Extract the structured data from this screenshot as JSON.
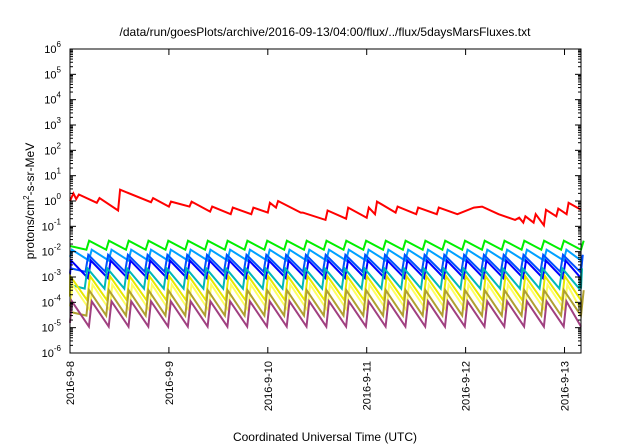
{
  "chart_data": {
    "type": "line",
    "title": "/data/run/goesPlots/archive/2016-09-13/04:00/flux/../flux/5daysMarsFluxes.txt",
    "xlabel": "Coordinated Universal Time (UTC)",
    "ylabel": "protons/cm^2-s-sr-MeV",
    "ylabel_base": "protons/cm",
    "ylabel_sup": "2",
    "ylabel_rest": "-s-sr-MeV",
    "yscale": "log",
    "ylim": [
      1e-06,
      1000000.0
    ],
    "yticks": [
      -6,
      -5,
      -4,
      -3,
      -2,
      -1,
      0,
      1,
      2,
      3,
      4,
      5,
      6
    ],
    "xlim": [
      "2016-09-08T00:00",
      "2016-09-13T04:00"
    ],
    "xticks": [
      "2016-9-8",
      "2016-9-9",
      "2016-9-10",
      "2016-9-11",
      "2016-9-12",
      "2016-9-13"
    ],
    "grid": false,
    "sawtooth_period_hours": 4.8,
    "series": [
      {
        "color": "#ff0000",
        "shape": "jagged",
        "points": [
          [
            "2016-09-08T00:00",
            1.0
          ],
          [
            "2016-09-08T00:50",
            2.0
          ],
          [
            "2016-09-08T01:30",
            1.2
          ],
          [
            "2016-09-08T02:10",
            1.8
          ],
          [
            "2016-09-08T06:30",
            0.85
          ],
          [
            "2016-09-08T07:10",
            1.3
          ],
          [
            "2016-09-08T11:40",
            0.42
          ],
          [
            "2016-09-08T12:10",
            2.8
          ],
          [
            "2016-09-08T19:40",
            0.9
          ],
          [
            "2016-09-08T20:10",
            1.3
          ],
          [
            "2016-09-09T00:00",
            0.6
          ],
          [
            "2016-09-09T00:30",
            0.95
          ],
          [
            "2016-09-09T05:00",
            0.6
          ],
          [
            "2016-09-09T05:30",
            0.95
          ],
          [
            "2016-09-09T10:00",
            0.38
          ],
          [
            "2016-09-09T10:30",
            0.6
          ],
          [
            "2016-09-09T15:00",
            0.3
          ],
          [
            "2016-09-09T15:30",
            0.55
          ],
          [
            "2016-09-09T20:00",
            0.3
          ],
          [
            "2016-09-09T20:30",
            0.55
          ],
          [
            "2016-09-10T00:00",
            0.35
          ],
          [
            "2016-09-10T00:30",
            0.85
          ],
          [
            "2016-09-10T02:00",
            0.55
          ],
          [
            "2016-09-10T02:30",
            1.0
          ],
          [
            "2016-09-10T08:00",
            0.35
          ],
          [
            "2016-09-10T08:30",
            0.35
          ],
          [
            "2016-09-10T14:00",
            0.18
          ],
          [
            "2016-09-10T14:30",
            0.42
          ],
          [
            "2016-09-10T19:00",
            0.2
          ],
          [
            "2016-09-10T19:30",
            0.55
          ],
          [
            "2016-09-11T00:00",
            0.22
          ],
          [
            "2016-09-11T00:30",
            0.55
          ],
          [
            "2016-09-11T02:00",
            0.3
          ],
          [
            "2016-09-11T02:30",
            0.95
          ],
          [
            "2016-09-11T07:00",
            0.35
          ],
          [
            "2016-09-11T07:30",
            0.6
          ],
          [
            "2016-09-11T12:00",
            0.3
          ],
          [
            "2016-09-11T12:30",
            0.55
          ],
          [
            "2016-09-11T17:00",
            0.3
          ],
          [
            "2016-09-11T17:30",
            0.55
          ],
          [
            "2016-09-11T22:00",
            0.3
          ],
          [
            "2016-09-12T02:00",
            0.55
          ],
          [
            "2016-09-12T04:00",
            0.6
          ],
          [
            "2016-09-12T08:00",
            0.3
          ],
          [
            "2016-09-12T12:00",
            0.18
          ],
          [
            "2016-09-12T13:00",
            0.22
          ],
          [
            "2016-09-12T14:00",
            0.14
          ],
          [
            "2016-09-12T14:30",
            0.25
          ],
          [
            "2016-09-12T16:30",
            0.14
          ],
          [
            "2016-09-12T17:00",
            0.3
          ],
          [
            "2016-09-12T19:00",
            0.11
          ],
          [
            "2016-09-12T19:30",
            0.45
          ],
          [
            "2016-09-12T22:00",
            0.25
          ],
          [
            "2016-09-12T22:30",
            0.5
          ],
          [
            "2016-09-13T00:30",
            0.3
          ],
          [
            "2016-09-13T01:00",
            0.85
          ],
          [
            "2016-09-13T04:00",
            0.45
          ]
        ]
      },
      {
        "color": "#00ee00",
        "shape": "sawtooth",
        "peak": 0.027,
        "trough": 0.012
      },
      {
        "color": "#00a0ff",
        "shape": "sawtooth",
        "peak": 0.012,
        "trough": 0.0045
      },
      {
        "color": "#0050ff",
        "shape": "sawtooth",
        "peak": 0.0075,
        "trough": 0.0016
      },
      {
        "color": "#0000ff",
        "shape": "sawtooth",
        "peak": 0.0045,
        "trough": 0.0009
      },
      {
        "color": "#00b8b8",
        "shape": "sawtooth",
        "peak": 0.0022,
        "trough": 0.00035
      },
      {
        "color": "#e8e800",
        "shape": "sawtooth",
        "peak": 0.0011,
        "trough": 0.00012
      },
      {
        "color": "#ffff60",
        "shape": "sawtooth",
        "peak": 0.0005,
        "trough": 5e-05
      },
      {
        "color": "#b0a030",
        "shape": "sawtooth",
        "peak": 0.0003,
        "trough": 3e-05
      },
      {
        "color": "#a04080",
        "shape": "sawtooth",
        "peak": 0.00011,
        "trough": 1.1e-05
      }
    ]
  }
}
